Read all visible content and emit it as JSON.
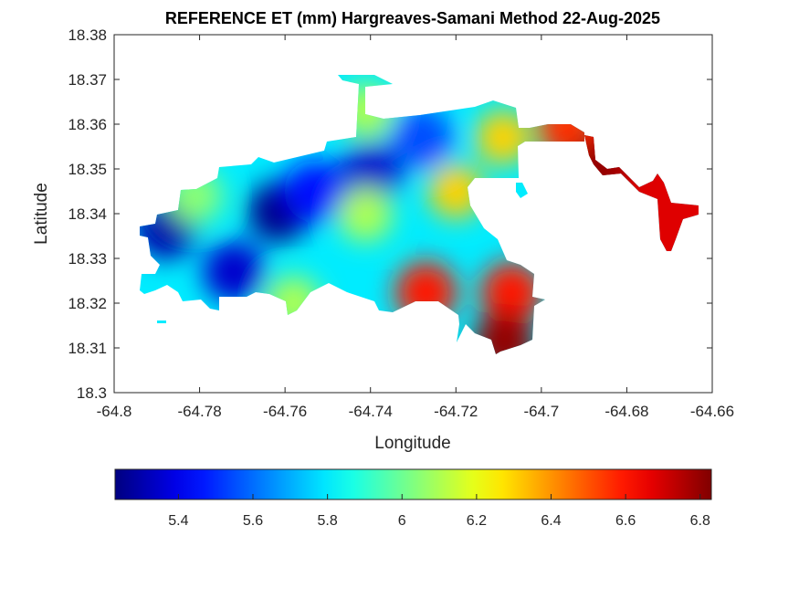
{
  "chart_data": {
    "type": "heatmap",
    "title": "REFERENCE ET (mm) Hargreaves-Samani Method  22-Aug-2025",
    "xlabel": "Longitude",
    "ylabel": "Latitude",
    "xlim": [
      -64.8,
      -64.66
    ],
    "ylim": [
      18.3,
      18.38
    ],
    "xticks": [
      "-64.8",
      "-64.78",
      "-64.76",
      "-64.74",
      "-64.72",
      "-64.7",
      "-64.68",
      "-64.66"
    ],
    "yticks": [
      "18.3",
      "18.31",
      "18.32",
      "18.33",
      "18.34",
      "18.35",
      "18.36",
      "18.37",
      "18.38"
    ],
    "grid": false,
    "colormap": "jet",
    "colorbar": {
      "placement": "bottom",
      "range": [
        5.23,
        6.83
      ],
      "ticks": [
        "5.4",
        "5.6",
        "5.8",
        "6",
        "6.2",
        "6.4",
        "6.6",
        "6.8"
      ]
    },
    "field_samples": [
      {
        "lon": -64.7615,
        "lat": 18.3404,
        "value": 5.25
      },
      {
        "lon": -64.788,
        "lat": 18.3367,
        "value": 5.3
      },
      {
        "lon": -64.772,
        "lat": 18.327,
        "value": 5.35
      },
      {
        "lon": -64.74,
        "lat": 18.349,
        "value": 5.35
      },
      {
        "lon": -64.753,
        "lat": 18.345,
        "value": 5.45
      },
      {
        "lon": -64.728,
        "lat": 18.357,
        "value": 5.55
      },
      {
        "lon": -64.7412,
        "lat": 18.3398,
        "value": 6.1
      },
      {
        "lon": -64.72,
        "lat": 18.345,
        "value": 6.3
      },
      {
        "lon": -64.709,
        "lat": 18.357,
        "value": 6.3
      },
      {
        "lon": -64.727,
        "lat": 18.3224,
        "value": 6.6
      },
      {
        "lon": -64.707,
        "lat": 18.3224,
        "value": 6.6
      },
      {
        "lon": -64.7087,
        "lat": 18.3112,
        "value": 6.8
      },
      {
        "lon": -64.694,
        "lat": 18.359,
        "value": 6.55
      },
      {
        "lon": -64.687,
        "lat": 18.35,
        "value": 6.8
      },
      {
        "lon": -64.781,
        "lat": 18.344,
        "value": 6.05
      },
      {
        "lon": -64.758,
        "lat": 18.32,
        "value": 6.1
      },
      {
        "lon": -64.741,
        "lat": 18.363,
        "value": 6.1
      }
    ]
  }
}
